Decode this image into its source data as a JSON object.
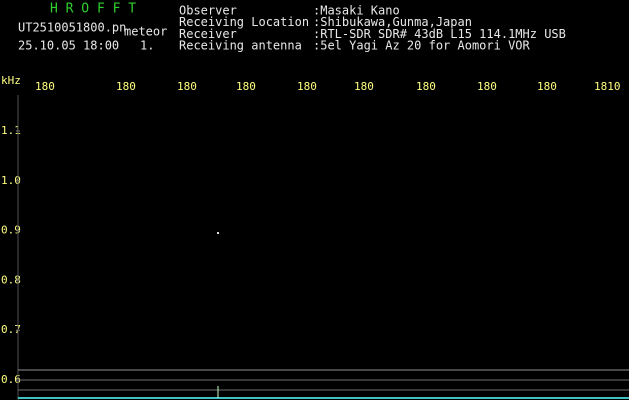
{
  "header": {
    "app": "H R O F F T",
    "file": "UT2510051800.pn",
    "mode": "meteor",
    "datetime": "25.10.05 18:00",
    "count": "1."
  },
  "info": [
    {
      "label": "Observer",
      "value": ":Masaki Kano"
    },
    {
      "label": "Receiving Location",
      "value": ":Shibukawa,Gunma,Japan"
    },
    {
      "label": "Receiver",
      "value": ":RTL-SDR SDR# 43dB L15 114.1MHz USB"
    },
    {
      "label": "Receiving antenna",
      "value": ":5el Yagi Az 20 for Aomori VOR"
    }
  ],
  "spectrogram": {
    "unit": "kHz",
    "top_labels": [
      "180",
      "180",
      "180",
      "180",
      "180",
      "180",
      "180",
      "180",
      "180",
      "1810"
    ],
    "left_labels": [
      "1.1",
      "1.0",
      "0.9",
      "0.8",
      "0.7",
      "0.6"
    ]
  }
}
